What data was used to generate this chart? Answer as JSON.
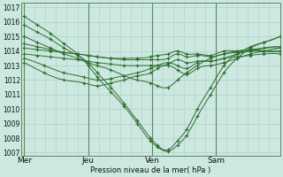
{
  "bg_color": "#cce8e0",
  "grid_color": "#b0d0c8",
  "line_color": "#2d6e2d",
  "ylabel_text": "Pression niveau de la mer( hPa )",
  "ylim": [
    1006.8,
    1017.3
  ],
  "yticks": [
    1007,
    1008,
    1009,
    1010,
    1011,
    1012,
    1013,
    1014,
    1015,
    1016,
    1017
  ],
  "xtick_labels": [
    "Mer",
    "Jeu",
    "Ven",
    "Sam"
  ],
  "xtick_positions": [
    0,
    48,
    96,
    144
  ],
  "xlim": [
    -2,
    192
  ],
  "lines": [
    {
      "points": [
        [
          0,
          1016.4
        ],
        [
          10,
          1015.8
        ],
        [
          20,
          1015.2
        ],
        [
          30,
          1014.5
        ],
        [
          40,
          1013.8
        ],
        [
          48,
          1013.0
        ],
        [
          55,
          1012.2
        ],
        [
          65,
          1011.2
        ],
        [
          75,
          1010.2
        ],
        [
          85,
          1009.0
        ],
        [
          95,
          1007.8
        ],
        [
          100,
          1007.4
        ],
        [
          108,
          1007.1
        ],
        [
          115,
          1007.5
        ],
        [
          122,
          1008.2
        ],
        [
          130,
          1009.5
        ],
        [
          140,
          1011.0
        ],
        [
          150,
          1012.5
        ],
        [
          160,
          1013.5
        ],
        [
          170,
          1014.2
        ],
        [
          180,
          1014.6
        ],
        [
          192,
          1015.0
        ]
      ]
    },
    {
      "points": [
        [
          0,
          1015.8
        ],
        [
          10,
          1015.3
        ],
        [
          20,
          1014.8
        ],
        [
          30,
          1014.2
        ],
        [
          40,
          1013.7
        ],
        [
          48,
          1013.2
        ],
        [
          55,
          1012.5
        ],
        [
          65,
          1011.5
        ],
        [
          75,
          1010.4
        ],
        [
          85,
          1009.2
        ],
        [
          95,
          1008.0
        ],
        [
          100,
          1007.5
        ],
        [
          108,
          1007.2
        ],
        [
          115,
          1007.8
        ],
        [
          122,
          1008.6
        ],
        [
          130,
          1010.0
        ],
        [
          140,
          1011.5
        ],
        [
          150,
          1013.0
        ],
        [
          160,
          1013.8
        ],
        [
          170,
          1014.3
        ],
        [
          180,
          1014.6
        ],
        [
          192,
          1015.0
        ]
      ]
    },
    {
      "points": [
        [
          0,
          1015.0
        ],
        [
          10,
          1014.6
        ],
        [
          20,
          1014.2
        ],
        [
          30,
          1013.8
        ],
        [
          40,
          1013.5
        ],
        [
          48,
          1013.2
        ],
        [
          55,
          1013.0
        ],
        [
          65,
          1012.7
        ],
        [
          75,
          1012.3
        ],
        [
          85,
          1012.0
        ],
        [
          95,
          1011.8
        ],
        [
          100,
          1011.6
        ],
        [
          108,
          1011.5
        ],
        [
          115,
          1012.0
        ],
        [
          122,
          1012.5
        ],
        [
          130,
          1013.0
        ],
        [
          140,
          1013.5
        ],
        [
          150,
          1013.8
        ],
        [
          160,
          1014.0
        ],
        [
          170,
          1014.1
        ],
        [
          180,
          1014.2
        ],
        [
          192,
          1014.2
        ]
      ]
    },
    {
      "points": [
        [
          0,
          1014.5
        ],
        [
          10,
          1014.3
        ],
        [
          20,
          1014.1
        ],
        [
          30,
          1013.9
        ],
        [
          40,
          1013.8
        ],
        [
          48,
          1013.7
        ],
        [
          55,
          1013.6
        ],
        [
          65,
          1013.5
        ],
        [
          75,
          1013.5
        ],
        [
          85,
          1013.5
        ],
        [
          95,
          1013.6
        ],
        [
          100,
          1013.7
        ],
        [
          108,
          1013.8
        ],
        [
          115,
          1014.0
        ],
        [
          122,
          1013.8
        ],
        [
          130,
          1013.8
        ],
        [
          140,
          1013.7
        ],
        [
          150,
          1014.0
        ],
        [
          160,
          1014.0
        ],
        [
          170,
          1014.1
        ],
        [
          180,
          1014.0
        ],
        [
          192,
          1014.0
        ]
      ]
    },
    {
      "points": [
        [
          0,
          1014.2
        ],
        [
          10,
          1014.1
        ],
        [
          20,
          1014.0
        ],
        [
          30,
          1013.9
        ],
        [
          40,
          1013.8
        ],
        [
          48,
          1013.7
        ],
        [
          55,
          1013.6
        ],
        [
          65,
          1013.5
        ],
        [
          75,
          1013.4
        ],
        [
          85,
          1013.4
        ],
        [
          95,
          1013.4
        ],
        [
          100,
          1013.4
        ],
        [
          108,
          1013.5
        ],
        [
          115,
          1013.8
        ],
        [
          122,
          1013.6
        ],
        [
          130,
          1013.7
        ],
        [
          140,
          1013.6
        ],
        [
          150,
          1013.8
        ],
        [
          160,
          1013.9
        ],
        [
          170,
          1014.0
        ],
        [
          180,
          1014.0
        ],
        [
          192,
          1014.0
        ]
      ]
    },
    {
      "points": [
        [
          0,
          1013.8
        ],
        [
          10,
          1013.7
        ],
        [
          20,
          1013.6
        ],
        [
          30,
          1013.5
        ],
        [
          40,
          1013.4
        ],
        [
          48,
          1013.3
        ],
        [
          55,
          1013.2
        ],
        [
          65,
          1013.1
        ],
        [
          75,
          1013.0
        ],
        [
          85,
          1013.0
        ],
        [
          95,
          1013.0
        ],
        [
          100,
          1013.0
        ],
        [
          108,
          1013.1
        ],
        [
          115,
          1013.4
        ],
        [
          122,
          1013.2
        ],
        [
          130,
          1013.3
        ],
        [
          140,
          1013.3
        ],
        [
          150,
          1013.5
        ],
        [
          160,
          1013.6
        ],
        [
          170,
          1013.7
        ],
        [
          180,
          1013.8
        ],
        [
          192,
          1013.8
        ]
      ]
    },
    {
      "points": [
        [
          0,
          1013.5
        ],
        [
          15,
          1013.0
        ],
        [
          30,
          1012.5
        ],
        [
          45,
          1012.2
        ],
        [
          55,
          1012.0
        ],
        [
          65,
          1012.1
        ],
        [
          75,
          1012.3
        ],
        [
          85,
          1012.5
        ],
        [
          95,
          1012.8
        ],
        [
          100,
          1013.0
        ],
        [
          108,
          1013.2
        ],
        [
          115,
          1013.0
        ],
        [
          122,
          1012.8
        ],
        [
          130,
          1013.2
        ],
        [
          140,
          1013.3
        ],
        [
          150,
          1013.5
        ],
        [
          160,
          1013.8
        ],
        [
          170,
          1014.0
        ],
        [
          180,
          1014.2
        ],
        [
          192,
          1014.3
        ]
      ]
    },
    {
      "points": [
        [
          0,
          1013.2
        ],
        [
          15,
          1012.5
        ],
        [
          30,
          1012.0
        ],
        [
          45,
          1011.8
        ],
        [
          55,
          1011.6
        ],
        [
          65,
          1011.8
        ],
        [
          75,
          1012.0
        ],
        [
          85,
          1012.3
        ],
        [
          95,
          1012.5
        ],
        [
          100,
          1012.8
        ],
        [
          108,
          1013.0
        ],
        [
          115,
          1012.7
        ],
        [
          122,
          1012.4
        ],
        [
          130,
          1012.8
        ],
        [
          140,
          1013.0
        ],
        [
          150,
          1013.2
        ],
        [
          160,
          1013.5
        ],
        [
          170,
          1013.8
        ],
        [
          180,
          1014.0
        ],
        [
          192,
          1014.2
        ]
      ]
    }
  ]
}
